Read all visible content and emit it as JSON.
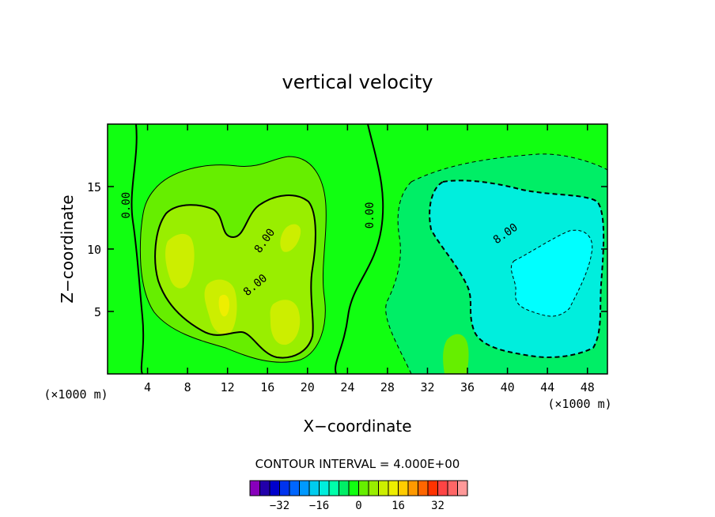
{
  "chart_data": {
    "type": "contour",
    "title": "vertical velocity",
    "xlabel": "X−coordinate",
    "ylabel": "Z−coordinate",
    "x_unit_left": "(×1000 m)",
    "x_unit_right": "(×1000 m)",
    "xlim": [
      0,
      50
    ],
    "ylim": [
      0,
      20
    ],
    "x_ticks": [
      4,
      8,
      12,
      16,
      20,
      24,
      28,
      32,
      36,
      40,
      44,
      48
    ],
    "y_ticks": [
      5,
      10,
      15
    ],
    "contour_interval_text": "CONTOUR INTERVAL = 4.000E+00",
    "contour_labels": [
      {
        "text": "0.00",
        "x": 2.2,
        "y": 13.5
      },
      {
        "text": "0.00",
        "x": 26.6,
        "y": 12.7
      },
      {
        "text": "8.00",
        "x": 16.0,
        "y": 10.5
      },
      {
        "text": "8.00",
        "x": 15.0,
        "y": 6.9
      },
      {
        "text": "8.00",
        "x": 40.0,
        "y": 11.0
      }
    ],
    "colorbar": {
      "colors": [
        "#8800bb",
        "#2200aa",
        "#0000cc",
        "#0033ee",
        "#0066ff",
        "#0099ff",
        "#00ccee",
        "#00eedd",
        "#00ffaa",
        "#00ee66",
        "#11ff11",
        "#66ee00",
        "#99ee00",
        "#ccee00",
        "#eeee00",
        "#ffcc00",
        "#ff9900",
        "#ff6600",
        "#ff3300",
        "#ff4444",
        "#ff6666",
        "#ff9999"
      ],
      "tick_labels": [
        "−32",
        "−16",
        "0",
        "16",
        "32"
      ],
      "tick_values": [
        -32,
        -16,
        0,
        16,
        32
      ]
    },
    "colors": {
      "zero_band": "#11ff11",
      "positive_4": "#66ee00",
      "positive_8": "#99ee00",
      "positive_12": "#ccee00",
      "positive_16": "#eeee00",
      "negative_4": "#00ee66",
      "negative_8": "#00eedd",
      "negative_12": "#00ffff"
    }
  }
}
